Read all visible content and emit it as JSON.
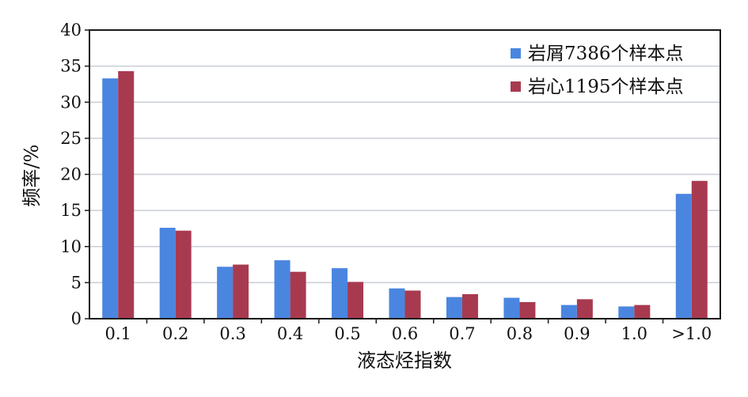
{
  "chart_data": {
    "type": "bar",
    "title": "",
    "xlabel": "液态烃指数",
    "ylabel": "频率/%",
    "ylim": [
      0,
      40
    ],
    "yticks": [
      0,
      5,
      10,
      15,
      20,
      25,
      30,
      35,
      40
    ],
    "grid": true,
    "legend_position": "top-right",
    "categories": [
      "0.1",
      "0.2",
      "0.3",
      "0.4",
      "0.5",
      "0.6",
      "0.7",
      "0.8",
      "0.9",
      "1.0",
      ">1.0"
    ],
    "series": [
      {
        "name": "岩屑7386个样本点",
        "color": "#4a86e0",
        "values": [
          33.3,
          12.6,
          7.2,
          8.1,
          7.0,
          4.2,
          3.0,
          2.9,
          1.9,
          1.7,
          17.3
        ]
      },
      {
        "name": "岩心1195个样本点",
        "color": "#a83a50",
        "values": [
          34.3,
          12.2,
          7.5,
          6.5,
          5.1,
          3.9,
          3.4,
          2.3,
          2.7,
          1.9,
          19.1
        ]
      }
    ]
  }
}
